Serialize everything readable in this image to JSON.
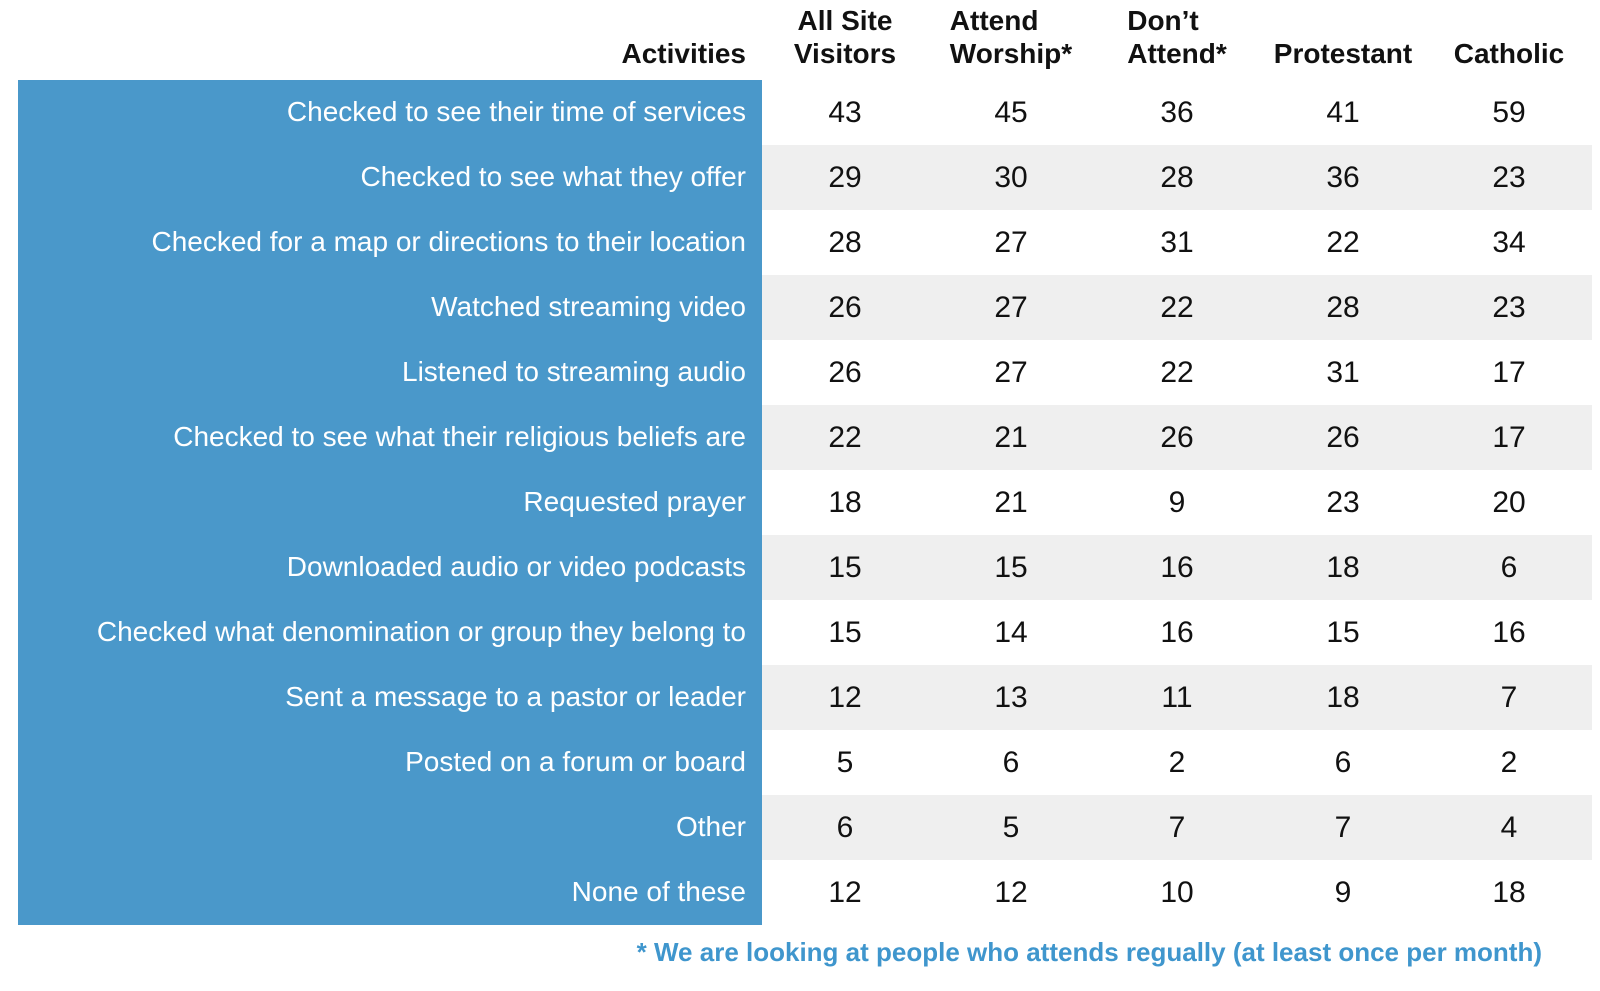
{
  "colors": {
    "panel_blue": "#4a98ca",
    "stripe_gray": "#efefef",
    "footnote_blue": "#3f96cd",
    "text_dark": "#111111",
    "label_text": "#ffffff"
  },
  "header": {
    "activities": "Activities",
    "columns": [
      {
        "line1": "All Site",
        "line2": "Visitors"
      },
      {
        "line1": "Attend",
        "line2": "Worship*"
      },
      {
        "line1": "Don’t",
        "line2": "Attend*"
      },
      {
        "line1": "",
        "line2": "Protestant"
      },
      {
        "line1": "",
        "line2": "Catholic"
      }
    ]
  },
  "footnote": "* We are looking at people who attends regually (at least once per month)",
  "chart_data": {
    "type": "table",
    "columns": [
      "Activities",
      "All Site Visitors",
      "Attend Worship*",
      "Don't Attend*",
      "Protestant",
      "Catholic"
    ],
    "rows": [
      {
        "activity": "Checked to see their time of services",
        "values": [
          43,
          45,
          36,
          41,
          59
        ]
      },
      {
        "activity": "Checked to see what they offer",
        "values": [
          29,
          30,
          28,
          36,
          23
        ]
      },
      {
        "activity": "Checked for a map or directions to their location",
        "values": [
          28,
          27,
          31,
          22,
          34
        ]
      },
      {
        "activity": "Watched streaming video",
        "values": [
          26,
          27,
          22,
          28,
          23
        ]
      },
      {
        "activity": "Listened to streaming audio",
        "values": [
          26,
          27,
          22,
          31,
          17
        ]
      },
      {
        "activity": "Checked to see what their religious beliefs are",
        "values": [
          22,
          21,
          26,
          26,
          17
        ]
      },
      {
        "activity": "Requested prayer",
        "values": [
          18,
          21,
          9,
          23,
          20
        ]
      },
      {
        "activity": "Downloaded audio or video podcasts",
        "values": [
          15,
          15,
          16,
          18,
          6
        ]
      },
      {
        "activity": "Checked what denomination or group they belong to",
        "values": [
          15,
          14,
          16,
          15,
          16
        ]
      },
      {
        "activity": "Sent a message to a pastor or leader",
        "values": [
          12,
          13,
          11,
          18,
          7
        ]
      },
      {
        "activity": "Posted on a forum or board",
        "values": [
          5,
          6,
          2,
          6,
          2
        ]
      },
      {
        "activity": "Other",
        "values": [
          6,
          5,
          7,
          7,
          4
        ]
      },
      {
        "activity": "None of these",
        "values": [
          12,
          12,
          10,
          9,
          18
        ]
      }
    ],
    "footnote": "* We are looking at people who attends regually (at least once per month)",
    "layout": {
      "striped_rows": "even",
      "label_column_bg": "#4a98ca"
    }
  }
}
